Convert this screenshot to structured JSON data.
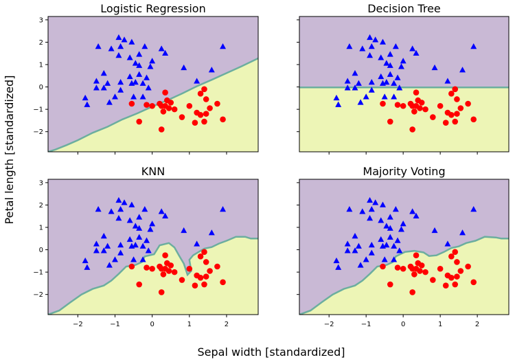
{
  "figure": {
    "xlabel": "Sepal width [standardized]",
    "ylabel": "Petal length [standardized]"
  },
  "colors": {
    "region_class0": "#c9b9d5",
    "region_class1": "#edf5b6",
    "boundary": "#6cae9f",
    "class0_marker": "#0000ff",
    "class1_marker": "#ff0000",
    "axes_edge": "#000000"
  },
  "chart_data": [
    {
      "type": "scatter",
      "title": "Logistic Regression",
      "xlim": [
        -2.8,
        2.85
      ],
      "ylim": [
        -2.9,
        3.15
      ],
      "xticks": [],
      "yticks": [
        -2,
        -1,
        0,
        1,
        2,
        3
      ],
      "grid": false,
      "boundary": [
        [
          -2.8,
          -2.9
        ],
        [
          -2.6,
          -2.8
        ],
        [
          -2.3,
          -2.6
        ],
        [
          -2.0,
          -2.38
        ],
        [
          -1.6,
          -2.05
        ],
        [
          -1.2,
          -1.78
        ],
        [
          -0.8,
          -1.45
        ],
        [
          -0.4,
          -1.18
        ],
        [
          0.0,
          -0.88
        ],
        [
          0.4,
          -0.6
        ],
        [
          0.8,
          -0.3
        ],
        [
          1.2,
          0.03
        ],
        [
          1.6,
          0.32
        ],
        [
          2.0,
          0.62
        ],
        [
          2.4,
          0.92
        ],
        [
          2.85,
          1.28
        ]
      ]
    },
    {
      "type": "scatter",
      "title": "Decision Tree",
      "xlim": [
        -2.8,
        2.85
      ],
      "ylim": [
        -2.9,
        3.15
      ],
      "xticks": [],
      "yticks": [],
      "grid": false,
      "boundary": [
        [
          -2.8,
          -0.02
        ],
        [
          2.85,
          -0.02
        ]
      ]
    },
    {
      "type": "scatter",
      "title": "KNN",
      "xlim": [
        -2.8,
        2.85
      ],
      "ylim": [
        -2.9,
        3.15
      ],
      "xticks": [
        -2,
        -1,
        0,
        1,
        2
      ],
      "yticks": [
        -2,
        -1,
        0,
        1,
        2,
        3
      ],
      "grid": false,
      "boundary": [
        [
          -2.8,
          -2.9
        ],
        [
          -2.5,
          -2.72
        ],
        [
          -2.2,
          -2.35
        ],
        [
          -1.9,
          -2.0
        ],
        [
          -1.6,
          -1.75
        ],
        [
          -1.3,
          -1.6
        ],
        [
          -1.1,
          -1.38
        ],
        [
          -0.9,
          -1.08
        ],
        [
          -0.7,
          -0.75
        ],
        [
          -0.45,
          -0.68
        ],
        [
          -0.28,
          -0.55
        ],
        [
          -0.2,
          -0.3
        ],
        [
          0.05,
          -0.2
        ],
        [
          0.2,
          0.2
        ],
        [
          0.45,
          0.3
        ],
        [
          0.6,
          0.1
        ],
        [
          0.72,
          -0.25
        ],
        [
          0.85,
          -0.62
        ],
        [
          0.95,
          -1.12
        ],
        [
          1.05,
          -0.95
        ],
        [
          1.0,
          -0.45
        ],
        [
          1.1,
          -0.25
        ],
        [
          1.25,
          -0.1
        ],
        [
          1.4,
          0.05
        ],
        [
          1.6,
          0.12
        ],
        [
          1.8,
          0.28
        ],
        [
          2.0,
          0.4
        ],
        [
          2.25,
          0.58
        ],
        [
          2.5,
          0.58
        ],
        [
          2.65,
          0.5
        ],
        [
          2.85,
          0.5
        ]
      ]
    },
    {
      "type": "scatter",
      "title": "Majority Voting",
      "xlim": [
        -2.8,
        2.85
      ],
      "ylim": [
        -2.9,
        3.15
      ],
      "xticks": [
        -2,
        -1,
        0,
        1,
        2
      ],
      "yticks": [],
      "grid": false,
      "boundary": [
        [
          -2.8,
          -2.9
        ],
        [
          -2.5,
          -2.72
        ],
        [
          -2.2,
          -2.35
        ],
        [
          -1.9,
          -2.0
        ],
        [
          -1.6,
          -1.75
        ],
        [
          -1.3,
          -1.6
        ],
        [
          -1.1,
          -1.38
        ],
        [
          -0.9,
          -1.08
        ],
        [
          -0.7,
          -0.75
        ],
        [
          -0.45,
          -0.68
        ],
        [
          -0.28,
          -0.55
        ],
        [
          -0.2,
          -0.3
        ],
        [
          0.05,
          -0.1
        ],
        [
          0.3,
          -0.05
        ],
        [
          0.55,
          -0.12
        ],
        [
          0.7,
          -0.28
        ],
        [
          0.9,
          -0.25
        ],
        [
          1.1,
          -0.1
        ],
        [
          1.3,
          0.08
        ],
        [
          1.5,
          0.15
        ],
        [
          1.7,
          0.3
        ],
        [
          1.95,
          0.4
        ],
        [
          2.2,
          0.58
        ],
        [
          2.5,
          0.55
        ],
        [
          2.65,
          0.5
        ],
        [
          2.85,
          0.5
        ]
      ]
    }
  ],
  "points": {
    "class0": [
      [
        -1.45,
        1.8
      ],
      [
        -0.9,
        2.2
      ],
      [
        -0.75,
        2.1
      ],
      [
        -0.55,
        2.0
      ],
      [
        -1.1,
        1.7
      ],
      [
        -0.85,
        1.8
      ],
      [
        -0.2,
        1.8
      ],
      [
        -0.35,
        1.45
      ],
      [
        -0.9,
        1.4
      ],
      [
        -0.6,
        1.3
      ],
      [
        -0.45,
        1.05
      ],
      [
        -0.35,
        0.95
      ],
      [
        -0.05,
        0.9
      ],
      [
        0.0,
        1.15
      ],
      [
        0.25,
        1.7
      ],
      [
        0.35,
        1.5
      ],
      [
        0.85,
        0.85
      ],
      [
        1.2,
        0.25
      ],
      [
        1.6,
        0.75
      ],
      [
        1.9,
        1.8
      ],
      [
        -1.5,
        0.25
      ],
      [
        -1.2,
        0.15
      ],
      [
        -1.3,
        0.6
      ],
      [
        -1.5,
        -0.05
      ],
      [
        -1.3,
        -0.05
      ],
      [
        -0.85,
        0.2
      ],
      [
        -0.6,
        0.45
      ],
      [
        -0.55,
        0.15
      ],
      [
        -0.35,
        0.55
      ],
      [
        -0.15,
        0.4
      ],
      [
        -0.45,
        0.2
      ],
      [
        -0.25,
        0.15
      ],
      [
        -0.1,
        -0.05
      ],
      [
        -1.8,
        -0.5
      ],
      [
        -1.75,
        -0.8
      ],
      [
        -1.15,
        -0.7
      ],
      [
        -1.0,
        -0.45
      ],
      [
        -0.85,
        -0.15
      ],
      [
        -0.5,
        -0.45
      ],
      [
        -0.25,
        -0.45
      ]
    ],
    "class1": [
      [
        -0.55,
        -0.75
      ],
      [
        -0.15,
        -0.8
      ],
      [
        0.0,
        -0.85
      ],
      [
        0.2,
        -0.75
      ],
      [
        0.35,
        -0.25
      ],
      [
        0.4,
        -0.6
      ],
      [
        0.45,
        -0.95
      ],
      [
        0.5,
        -0.7
      ],
      [
        0.3,
        -1.1
      ],
      [
        0.25,
        -0.85
      ],
      [
        0.6,
        -1.0
      ],
      [
        0.35,
        -0.85
      ],
      [
        1.0,
        -0.85
      ],
      [
        1.2,
        -1.15
      ],
      [
        1.3,
        -0.3
      ],
      [
        1.4,
        -0.1
      ],
      [
        1.45,
        -0.55
      ],
      [
        1.55,
        -0.95
      ],
      [
        1.75,
        -0.75
      ],
      [
        1.45,
        -1.2
      ],
      [
        1.3,
        -1.25
      ],
      [
        0.8,
        -1.35
      ],
      [
        1.4,
        -1.55
      ],
      [
        1.15,
        -1.6
      ],
      [
        1.9,
        -1.45
      ],
      [
        -0.35,
        -1.55
      ],
      [
        0.25,
        -1.9
      ]
    ]
  }
}
